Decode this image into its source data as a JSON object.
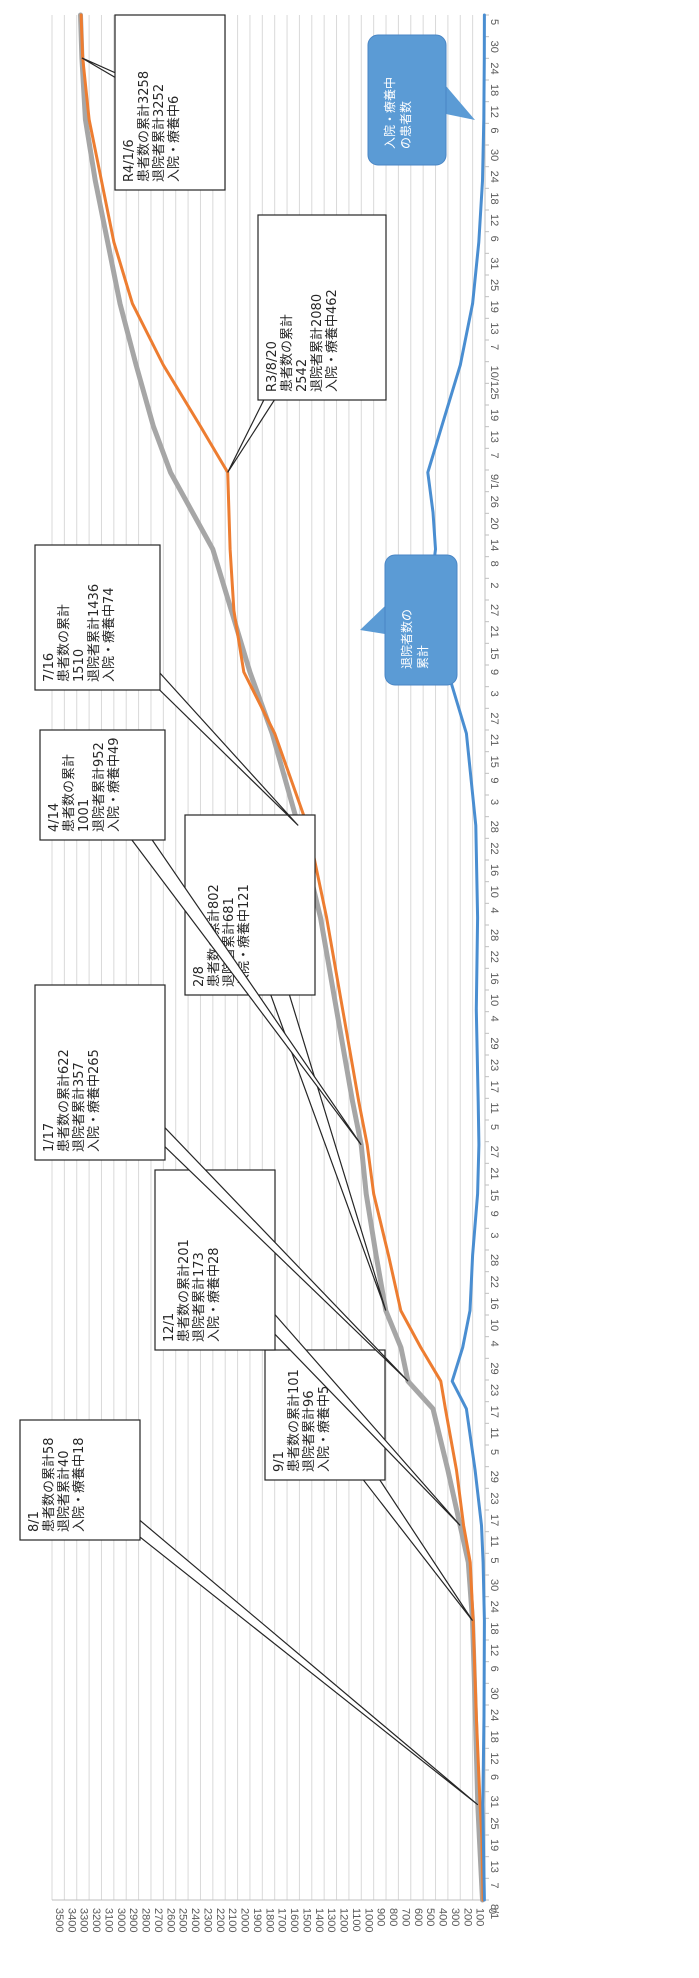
{
  "chart_data": {
    "type": "line",
    "title": "",
    "xlabel": "",
    "ylabel": "",
    "ylim": [
      0,
      3500
    ],
    "y_ticks": [
      0,
      100,
      200,
      300,
      400,
      500,
      600,
      700,
      800,
      900,
      1000,
      1100,
      1200,
      1300,
      1400,
      1500,
      1600,
      1700,
      1800,
      1900,
      2000,
      2100,
      2200,
      2300,
      2400,
      2500,
      2600,
      2700,
      2800,
      2900,
      3000,
      3100,
      3200,
      3300,
      3400,
      3500
    ],
    "x_tick_labels": [
      "8/1",
      "7",
      "13",
      "19",
      "25",
      "31",
      "6",
      "12",
      "18",
      "24",
      "30",
      "6",
      "12",
      "18",
      "24",
      "30",
      "5",
      "11",
      "17",
      "23",
      "29",
      "5",
      "11",
      "17",
      "23",
      "29",
      "4",
      "10",
      "16",
      "22",
      "28",
      "3",
      "9",
      "15",
      "21",
      "27",
      "5",
      "11",
      "17",
      "23",
      "29",
      "4",
      "10",
      "16",
      "22",
      "28",
      "4",
      "10",
      "16",
      "22",
      "28",
      "3",
      "9",
      "15",
      "21",
      "27",
      "3",
      "9",
      "15",
      "21",
      "27",
      "2",
      "8",
      "14",
      "20",
      "26",
      "9/1",
      "7",
      "13",
      "19",
      "25",
      "10/1",
      "7",
      "13",
      "19",
      "25",
      "31",
      "6",
      "12",
      "18",
      "24",
      "30",
      "6",
      "12",
      "18",
      "24",
      "30",
      "5"
    ],
    "grid": true,
    "series": [
      {
        "name": "患者数の累計",
        "color": "#a6a6a6",
        "points": [
          [
            0,
            20
          ],
          [
            20,
            45
          ],
          [
            31,
            58
          ],
          [
            60,
            78
          ],
          [
            80,
            92
          ],
          [
            91,
            101
          ],
          [
            110,
            135
          ],
          [
            122,
            201
          ],
          [
            140,
            300
          ],
          [
            160,
            420
          ],
          [
            169,
            622
          ],
          [
            180,
            680
          ],
          [
            192,
            802
          ],
          [
            210,
            880
          ],
          [
            230,
            960
          ],
          [
            246,
            1001
          ],
          [
            260,
            1070
          ],
          [
            290,
            1200
          ],
          [
            320,
            1330
          ],
          [
            350,
            1510
          ],
          [
            380,
            1720
          ],
          [
            400,
            1900
          ],
          [
            420,
            2050
          ],
          [
            440,
            2200
          ],
          [
            465,
            2542
          ],
          [
            480,
            2680
          ],
          [
            500,
            2820
          ],
          [
            520,
            2950
          ],
          [
            540,
            3050
          ],
          [
            560,
            3150
          ],
          [
            580,
            3230
          ],
          [
            600,
            3258
          ],
          [
            614,
            3270
          ]
        ]
      },
      {
        "name": "退院者累計",
        "color": "#ed7d31",
        "points": [
          [
            0,
            15
          ],
          [
            20,
            25
          ],
          [
            31,
            40
          ],
          [
            60,
            70
          ],
          [
            91,
            96
          ],
          [
            110,
            120
          ],
          [
            122,
            173
          ],
          [
            140,
            230
          ],
          [
            160,
            320
          ],
          [
            169,
            357
          ],
          [
            180,
            520
          ],
          [
            192,
            681
          ],
          [
            210,
            780
          ],
          [
            230,
            900
          ],
          [
            246,
            952
          ],
          [
            260,
            1020
          ],
          [
            290,
            1150
          ],
          [
            320,
            1280
          ],
          [
            350,
            1436
          ],
          [
            380,
            1700
          ],
          [
            400,
            1950
          ],
          [
            420,
            2030
          ],
          [
            440,
            2060
          ],
          [
            465,
            2080
          ],
          [
            480,
            2300
          ],
          [
            500,
            2600
          ],
          [
            520,
            2850
          ],
          [
            540,
            3000
          ],
          [
            560,
            3100
          ],
          [
            580,
            3200
          ],
          [
            600,
            3252
          ],
          [
            614,
            3265
          ]
        ]
      },
      {
        "name": "入院・療養中の患者数",
        "color": "#4a8ed1",
        "points": [
          [
            0,
            5
          ],
          [
            31,
            18
          ],
          [
            60,
            8
          ],
          [
            91,
            5
          ],
          [
            110,
            15
          ],
          [
            122,
            28
          ],
          [
            140,
            80
          ],
          [
            160,
            150
          ],
          [
            169,
            265
          ],
          [
            180,
            180
          ],
          [
            192,
            121
          ],
          [
            210,
            100
          ],
          [
            230,
            60
          ],
          [
            246,
            49
          ],
          [
            260,
            55
          ],
          [
            290,
            70
          ],
          [
            320,
            60
          ],
          [
            350,
            74
          ],
          [
            380,
            150
          ],
          [
            400,
            300
          ],
          [
            410,
            420
          ],
          [
            420,
            440
          ],
          [
            430,
            430
          ],
          [
            440,
            400
          ],
          [
            452,
            420
          ],
          [
            465,
            462
          ],
          [
            480,
            350
          ],
          [
            500,
            200
          ],
          [
            520,
            100
          ],
          [
            540,
            50
          ],
          [
            560,
            20
          ],
          [
            580,
            10
          ],
          [
            600,
            6
          ],
          [
            614,
            5
          ]
        ]
      }
    ],
    "annotations": [
      {
        "lines": [
          "8/1",
          "患者数の累計58",
          "退院者累計40",
          "入院・療養中18"
        ],
        "x": 31,
        "y": 58
      },
      {
        "lines": [
          "9/1",
          "患者数の累計101",
          "退院者累計96",
          "入院・療養中5"
        ],
        "x": 91,
        "y": 101
      },
      {
        "lines": [
          "12/1",
          "患者数の累計201",
          "退院者累計173",
          "入院・療養中28"
        ],
        "x": 122,
        "y": 201
      },
      {
        "lines": [
          "1/17",
          "患者数の累計622",
          "退院者累計357",
          "入院・療養中265"
        ],
        "x": 169,
        "y": 622
      },
      {
        "lines": [
          "2/8",
          "患者数の累計802",
          "退院者累計681",
          "入院・療養中121"
        ],
        "x": 192,
        "y": 802
      },
      {
        "lines": [
          "4/14",
          "患者数の累計",
          "1001",
          "退院者累計952",
          "入院・療養中49"
        ],
        "x": 246,
        "y": 1001
      },
      {
        "lines": [
          "7/16",
          "患者数の累計",
          "1510",
          "退院者累計1436",
          "入院・療養中74"
        ],
        "x": 350,
        "y": 1510
      },
      {
        "lines": [
          "R3/8/20",
          "患者数の累計",
          "2542",
          "退院者累計2080",
          "入院・療養中462"
        ],
        "x": 465,
        "y": 2080
      },
      {
        "lines": [
          "R4/1/6",
          "患者数の累計3258",
          "退院者累計3252",
          "入院・療養中6"
        ],
        "x": 600,
        "y": 3258
      }
    ],
    "callouts": [
      {
        "lines": [
          "退院者数の",
          "累計"
        ],
        "series": "退院者累計",
        "x": 300,
        "y": 1500
      },
      {
        "lines": [
          "入院・療養中",
          "の患者数"
        ],
        "series": "入院・療養中の患者数",
        "x": 560,
        "y": 300
      }
    ]
  }
}
